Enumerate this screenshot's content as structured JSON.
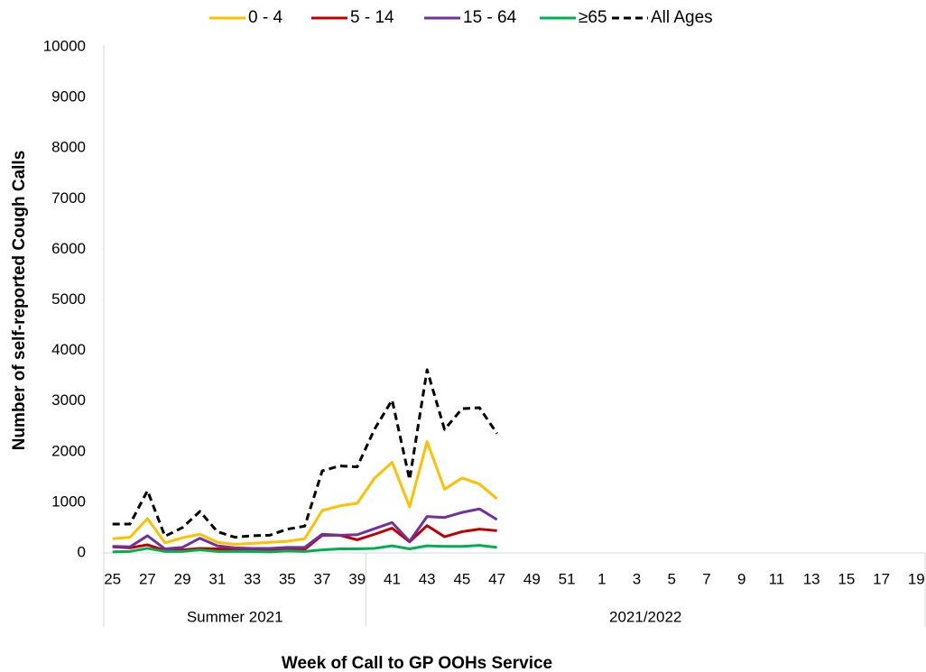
{
  "chart_data": {
    "type": "line",
    "x_label": "Week of Call to GP OOHs Service",
    "y_label": "Number of self-reported Cough Calls",
    "categories": [
      "25",
      null,
      "27",
      null,
      "29",
      null,
      "31",
      null,
      "33",
      null,
      "35",
      null,
      "37",
      null,
      "39",
      null,
      "41",
      null,
      "43",
      null,
      "45",
      null,
      "47",
      null,
      "49",
      null,
      "51",
      null,
      "1",
      null,
      "3",
      null,
      "5",
      null,
      "7",
      null,
      "9",
      null,
      "11",
      null,
      "13",
      null,
      "15",
      null,
      "17",
      null,
      "19"
    ],
    "groups": [
      {
        "label": "Summer 2021",
        "size": 15
      },
      {
        "label": "2021/2022",
        "size": 32
      }
    ],
    "ylim": [
      0,
      10000
    ],
    "yticks": [
      0,
      1000,
      2000,
      3000,
      4000,
      5000,
      6000,
      7000,
      8000,
      9000,
      10000
    ],
    "legend": "top",
    "series": [
      {
        "name": "0 - 4",
        "color": "#ffc000",
        "values": [
          280,
          310,
          680,
          200,
          300,
          370,
          210,
          170,
          190,
          210,
          230,
          280,
          840,
          930,
          980,
          1480,
          1790,
          910,
          2200,
          1260,
          1480,
          1360,
          1070,
          null,
          null,
          null,
          null,
          null,
          null,
          null,
          null,
          null,
          null,
          null,
          null,
          null,
          null,
          null,
          null,
          null,
          null,
          null,
          null,
          null,
          null,
          null,
          null
        ]
      },
      {
        "name": "5 - 14",
        "color": "#c00000",
        "values": [
          120,
          100,
          160,
          50,
          60,
          90,
          80,
          70,
          70,
          60,
          80,
          70,
          350,
          350,
          260,
          370,
          490,
          220,
          540,
          320,
          420,
          470,
          440,
          null,
          null,
          null,
          null,
          null,
          null,
          null,
          null,
          null,
          null,
          null,
          null,
          null,
          null,
          null,
          null,
          null,
          null,
          null,
          null,
          null,
          null,
          null,
          null
        ]
      },
      {
        "name": "15 - 64",
        "color": "#7030a0",
        "values": [
          130,
          120,
          340,
          80,
          110,
          290,
          140,
          100,
          90,
          90,
          110,
          110,
          370,
          350,
          360,
          480,
          600,
          230,
          720,
          700,
          800,
          870,
          660,
          null,
          null,
          null,
          null,
          null,
          null,
          null,
          null,
          null,
          null,
          null,
          null,
          null,
          null,
          null,
          null,
          null,
          null,
          null,
          null,
          null,
          null,
          null,
          null
        ]
      },
      {
        "name": "≥65",
        "color": "#00b050",
        "values": [
          20,
          30,
          90,
          30,
          30,
          60,
          30,
          30,
          30,
          20,
          40,
          30,
          60,
          80,
          80,
          90,
          140,
          80,
          140,
          130,
          130,
          150,
          110,
          null,
          null,
          null,
          null,
          null,
          null,
          null,
          null,
          null,
          null,
          null,
          null,
          null,
          null,
          null,
          null,
          null,
          null,
          null,
          null,
          null,
          null,
          null,
          null
        ]
      },
      {
        "name": "All Ages",
        "color": "#000000",
        "dash": true,
        "values": [
          570,
          570,
          1230,
          330,
          500,
          820,
          420,
          310,
          340,
          350,
          470,
          530,
          1620,
          1720,
          1700,
          2450,
          3020,
          1450,
          3620,
          2440,
          2850,
          2870,
          2360,
          null,
          null,
          null,
          null,
          null,
          null,
          null,
          null,
          null,
          null,
          null,
          null,
          null,
          null,
          null,
          null,
          null,
          null,
          null,
          null,
          null,
          null,
          null,
          null
        ]
      }
    ]
  }
}
